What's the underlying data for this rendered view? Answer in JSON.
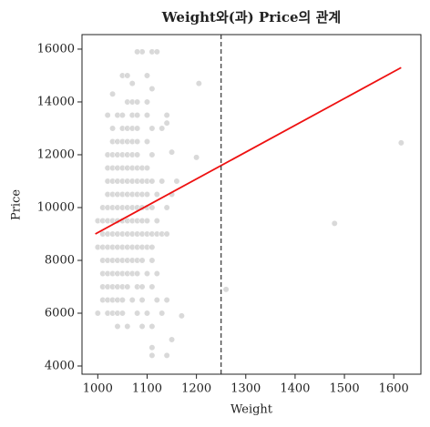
{
  "chart_data": {
    "type": "scatter",
    "title": "Weight와(과) Price의 관계",
    "x_label": "Weight",
    "y_label": "Price",
    "color": "#808080",
    "x": [
      1010,
      1020,
      1030,
      1040,
      1050,
      1060,
      1070,
      1080,
      1090,
      1100,
      1110,
      1120,
      1130,
      1140,
      1000,
      1010,
      1020,
      1030,
      1040,
      1050,
      1060,
      1070,
      1080,
      1090,
      1100,
      1110,
      1010,
      1020,
      1030,
      1040,
      1050,
      1060,
      1070,
      1080,
      1090,
      1110,
      1010,
      1020,
      1030,
      1040,
      1050,
      1060,
      1070,
      1080,
      1100,
      1120,
      1010,
      1020,
      1030,
      1040,
      1050,
      1060,
      1080,
      1090,
      1110,
      1010,
      1020,
      1030,
      1040,
      1050,
      1070,
      1090,
      1120,
      1140,
      1000,
      1020,
      1030,
      1040,
      1050,
      1080,
      1100,
      1130,
      1000,
      1010,
      1020,
      1030,
      1040,
      1050,
      1060,
      1070,
      1080,
      1090,
      1100,
      1120,
      1010,
      1020,
      1030,
      1040,
      1050,
      1060,
      1070,
      1080,
      1090,
      1100,
      1110,
      1140,
      1020,
      1030,
      1040,
      1050,
      1060,
      1070,
      1080,
      1090,
      1100,
      1120,
      1150,
      1020,
      1030,
      1040,
      1050,
      1060,
      1070,
      1080,
      1090,
      1100,
      1110,
      1130,
      1160,
      1020,
      1030,
      1040,
      1050,
      1060,
      1070,
      1080,
      1090,
      1100,
      1020,
      1030,
      1040,
      1050,
      1060,
      1070,
      1080,
      1110,
      1030,
      1040,
      1050,
      1060,
      1070,
      1080,
      1100,
      1030,
      1050,
      1060,
      1070,
      1080,
      1110,
      1130,
      1020,
      1040,
      1050,
      1070,
      1080,
      1100,
      1140,
      1060,
      1070,
      1080,
      1100,
      1040,
      1060,
      1090,
      1110,
      1150,
      1110,
      1110,
      1140,
      1615,
      1480,
      1260,
      1205,
      1200,
      1170,
      1150,
      1140,
      1090,
      1110,
      1120,
      1080,
      1030,
      1050,
      1060,
      1100,
      1110,
      1070
    ],
    "values": [
      9000,
      9000,
      9000,
      9000,
      9000,
      9000,
      9000,
      9000,
      9000,
      9000,
      9000,
      9000,
      9000,
      9000,
      8500,
      8500,
      8500,
      8500,
      8500,
      8500,
      8500,
      8500,
      8500,
      8500,
      8500,
      8500,
      8000,
      8000,
      8000,
      8000,
      8000,
      8000,
      8000,
      8000,
      8000,
      8000,
      7500,
      7500,
      7500,
      7500,
      7500,
      7500,
      7500,
      7500,
      7500,
      7500,
      7000,
      7000,
      7000,
      7000,
      7000,
      7000,
      7000,
      7000,
      7000,
      6500,
      6500,
      6500,
      6500,
      6500,
      6500,
      6500,
      6500,
      6500,
      6000,
      6000,
      6000,
      6000,
      6000,
      6000,
      6000,
      6000,
      9500,
      9500,
      9500,
      9500,
      9500,
      9500,
      9500,
      9500,
      9500,
      9500,
      9500,
      9500,
      10000,
      10000,
      10000,
      10000,
      10000,
      10000,
      10000,
      10000,
      10000,
      10000,
      10000,
      10000,
      10500,
      10500,
      10500,
      10500,
      10500,
      10500,
      10500,
      10500,
      10500,
      10500,
      10500,
      11000,
      11000,
      11000,
      11000,
      11000,
      11000,
      11000,
      11000,
      11000,
      11000,
      11000,
      11000,
      11500,
      11500,
      11500,
      11500,
      11500,
      11500,
      11500,
      11500,
      11500,
      12000,
      12000,
      12000,
      12000,
      12000,
      12000,
      12000,
      12000,
      12500,
      12500,
      12500,
      12500,
      12500,
      12500,
      12500,
      13000,
      13000,
      13000,
      13000,
      13000,
      13000,
      13000,
      13500,
      13500,
      13500,
      13500,
      13500,
      13500,
      13500,
      14000,
      14000,
      14000,
      14000,
      5500,
      5500,
      5500,
      5500,
      5000,
      4700,
      4400,
      4400,
      12450,
      9400,
      6900,
      14700,
      11900,
      5900,
      12100,
      13200,
      15900,
      15900,
      15900,
      15900,
      14300,
      15000,
      15000,
      15000,
      14500,
      14700
    ],
    "fit_line": {
      "x": [
        995,
        1615
      ],
      "y": [
        9000,
        15300
      ],
      "color": "#ee1111"
    },
    "vline": {
      "x": 1250,
      "color": "#333333"
    },
    "xlim": [
      968,
      1655
    ],
    "ylim": [
      3690,
      16550
    ],
    "xticks": [
      1000,
      1100,
      1200,
      1300,
      1400,
      1500,
      1600
    ],
    "yticks": [
      4000,
      6000,
      8000,
      10000,
      12000,
      14000,
      16000
    ]
  }
}
